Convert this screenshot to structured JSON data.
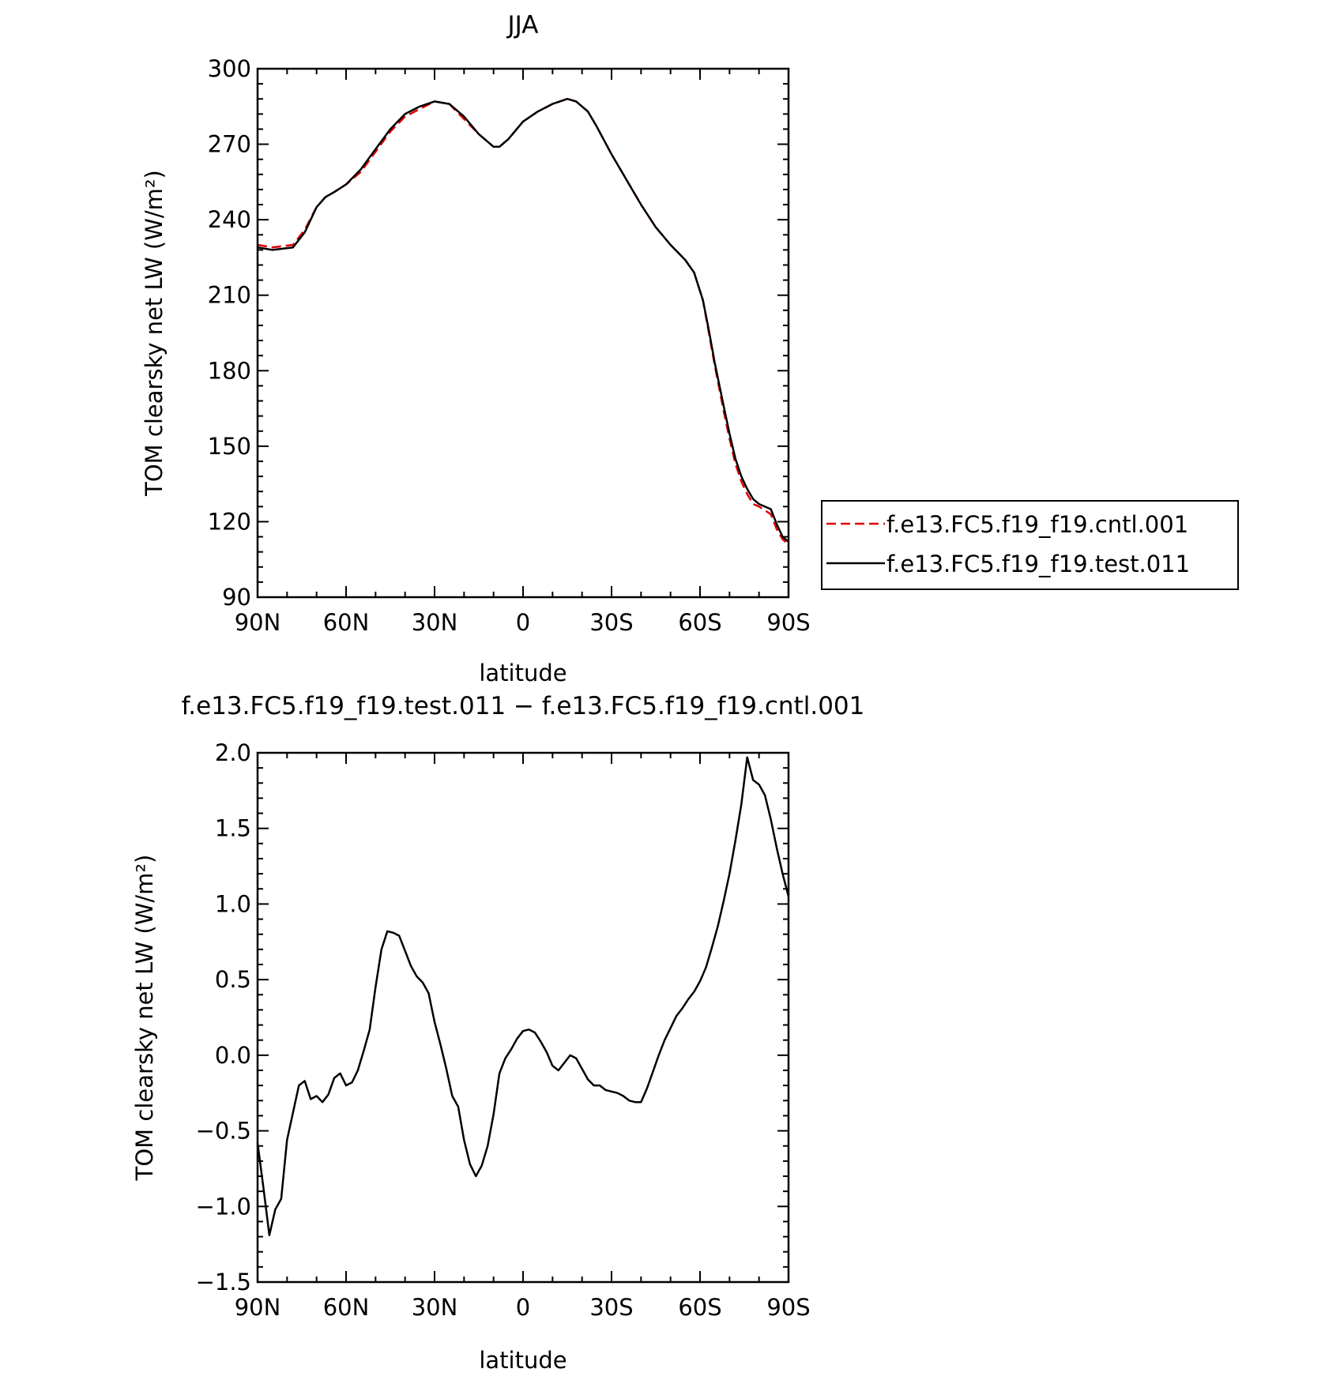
{
  "chart_data": [
    {
      "type": "line",
      "title": "JJA",
      "xlabel": "latitude",
      "ylabel": "TOM clearsky net LW (W/m²)",
      "xlim": [
        -90,
        90
      ],
      "ylim": [
        90,
        300
      ],
      "x_ticks": [
        {
          "value": -90,
          "label": "90N"
        },
        {
          "value": -60,
          "label": "60N"
        },
        {
          "value": -30,
          "label": "30N"
        },
        {
          "value": 0,
          "label": "0"
        },
        {
          "value": 30,
          "label": "30S"
        },
        {
          "value": 60,
          "label": "60S"
        },
        {
          "value": 90,
          "label": "90S"
        }
      ],
      "y_ticks": [
        {
          "value": 90,
          "label": "90"
        },
        {
          "value": 120,
          "label": "120"
        },
        {
          "value": 150,
          "label": "150"
        },
        {
          "value": 180,
          "label": "180"
        },
        {
          "value": 210,
          "label": "210"
        },
        {
          "value": 240,
          "label": "240"
        },
        {
          "value": 270,
          "label": "270"
        },
        {
          "value": 300,
          "label": "300"
        }
      ],
      "legend_position": "right",
      "series": [
        {
          "name": "f.e13.FC5.f19_f19.cntl.001",
          "color": "#e00000",
          "dash": "dashed",
          "x": [
            -90,
            -85,
            -78,
            -74,
            -70,
            -67,
            -64,
            -60,
            -55,
            -50,
            -45,
            -40,
            -35,
            -30,
            -25,
            -20,
            -15,
            -10,
            -8,
            -5,
            0,
            5,
            10,
            15,
            18,
            22,
            25,
            30,
            35,
            40,
            45,
            50,
            55,
            58,
            61,
            63,
            65,
            68,
            70,
            72,
            74,
            76,
            78,
            80,
            84,
            86,
            88,
            90
          ],
          "values": [
            230,
            229,
            230,
            236,
            245,
            249,
            251,
            254,
            259,
            267,
            275,
            281,
            284,
            287,
            286,
            280,
            274,
            269,
            269,
            272,
            279,
            283,
            286,
            288,
            287,
            283,
            277,
            266,
            256,
            246,
            237,
            230,
            224,
            219,
            208,
            195,
            182,
            164,
            153,
            143,
            136,
            131,
            127,
            126,
            123,
            117,
            113,
            111
          ]
        },
        {
          "name": "f.e13.FC5.f19_f19.test.011",
          "color": "#000000",
          "dash": "solid",
          "x": [
            -90,
            -85,
            -78,
            -74,
            -70,
            -67,
            -64,
            -60,
            -55,
            -50,
            -45,
            -40,
            -35,
            -30,
            -25,
            -20,
            -15,
            -10,
            -8,
            -5,
            0,
            5,
            10,
            15,
            18,
            22,
            25,
            30,
            35,
            40,
            45,
            50,
            55,
            58,
            61,
            63,
            65,
            68,
            70,
            72,
            74,
            76,
            78,
            80,
            84,
            86,
            88,
            90
          ],
          "values": [
            229,
            228,
            229,
            235,
            245,
            249,
            251,
            254,
            260,
            268,
            276,
            282,
            285,
            287,
            286,
            281,
            274,
            269,
            269,
            272,
            279,
            283,
            286,
            288,
            287,
            283,
            277,
            266,
            256,
            246,
            237,
            230,
            224,
            219,
            208,
            196,
            183,
            166,
            155,
            145,
            138,
            133,
            129,
            127,
            125,
            119,
            114,
            112
          ]
        }
      ]
    },
    {
      "type": "line",
      "title": "f.e13.FC5.f19_f19.test.011 − f.e13.FC5.f19_f19.cntl.001",
      "xlabel": "latitude",
      "ylabel": "TOM clearsky net LW (W/m²)",
      "xlim": [
        -90,
        90
      ],
      "ylim": [
        -1.5,
        2.0
      ],
      "x_ticks": [
        {
          "value": -90,
          "label": "90N"
        },
        {
          "value": -60,
          "label": "60N"
        },
        {
          "value": -30,
          "label": "30N"
        },
        {
          "value": 0,
          "label": "0"
        },
        {
          "value": 30,
          "label": "30S"
        },
        {
          "value": 60,
          "label": "60S"
        },
        {
          "value": 90,
          "label": "90S"
        }
      ],
      "y_ticks": [
        {
          "value": -1.5,
          "label": "−1.5"
        },
        {
          "value": -1.0,
          "label": "−1.0"
        },
        {
          "value": -0.5,
          "label": "−0.5"
        },
        {
          "value": 0.0,
          "label": "0.0"
        },
        {
          "value": 0.5,
          "label": "0.5"
        },
        {
          "value": 1.0,
          "label": "1.0"
        },
        {
          "value": 1.5,
          "label": "1.5"
        },
        {
          "value": 2.0,
          "label": "2.0"
        }
      ],
      "series": [
        {
          "color": "#000000",
          "dash": "solid",
          "x": [
            -90,
            -88,
            -86,
            -84,
            -82,
            -80,
            -78,
            -76,
            -74,
            -72,
            -70,
            -68,
            -66,
            -64,
            -62,
            -60,
            -58,
            -56,
            -54,
            -52,
            -50,
            -48,
            -46,
            -44,
            -42,
            -40,
            -38,
            -36,
            -34,
            -32,
            -30,
            -28,
            -26,
            -24,
            -22,
            -20,
            -18,
            -16,
            -14,
            -12,
            -10,
            -8,
            -6,
            -4,
            -2,
            0,
            2,
            4,
            6,
            8,
            10,
            12,
            14,
            16,
            18,
            20,
            22,
            24,
            26,
            28,
            30,
            32,
            34,
            36,
            38,
            40,
            42,
            44,
            46,
            48,
            50,
            52,
            54,
            56,
            58,
            60,
            62,
            64,
            66,
            68,
            70,
            72,
            74,
            76,
            78,
            80,
            82,
            84,
            86,
            88,
            90
          ],
          "values": [
            -0.58,
            -0.88,
            -1.19,
            -1.02,
            -0.95,
            -0.56,
            -0.38,
            -0.2,
            -0.17,
            -0.29,
            -0.27,
            -0.31,
            -0.26,
            -0.15,
            -0.12,
            -0.2,
            -0.18,
            -0.1,
            0.03,
            0.17,
            0.45,
            0.7,
            0.82,
            0.81,
            0.79,
            0.69,
            0.59,
            0.52,
            0.48,
            0.41,
            0.22,
            0.07,
            -0.09,
            -0.27,
            -0.34,
            -0.56,
            -0.72,
            -0.8,
            -0.73,
            -0.6,
            -0.39,
            -0.12,
            -0.02,
            0.04,
            0.11,
            0.16,
            0.17,
            0.15,
            0.09,
            0.02,
            -0.07,
            -0.1,
            -0.05,
            0.0,
            -0.02,
            -0.09,
            -0.16,
            -0.2,
            -0.2,
            -0.23,
            -0.24,
            -0.25,
            -0.27,
            -0.3,
            -0.31,
            -0.31,
            -0.22,
            -0.11,
            0.0,
            0.1,
            0.18,
            0.26,
            0.31,
            0.37,
            0.42,
            0.49,
            0.58,
            0.71,
            0.85,
            1.02,
            1.2,
            1.42,
            1.66,
            1.97,
            1.82,
            1.79,
            1.72,
            1.56,
            1.37,
            1.2,
            1.05
          ]
        }
      ]
    }
  ],
  "legend": {
    "items": [
      {
        "label": "f.e13.FC5.f19_f19.cntl.001",
        "color": "#e00000",
        "dash": "dashed"
      },
      {
        "label": "f.e13.FC5.f19_f19.test.011",
        "color": "#000000",
        "dash": "solid"
      }
    ]
  }
}
